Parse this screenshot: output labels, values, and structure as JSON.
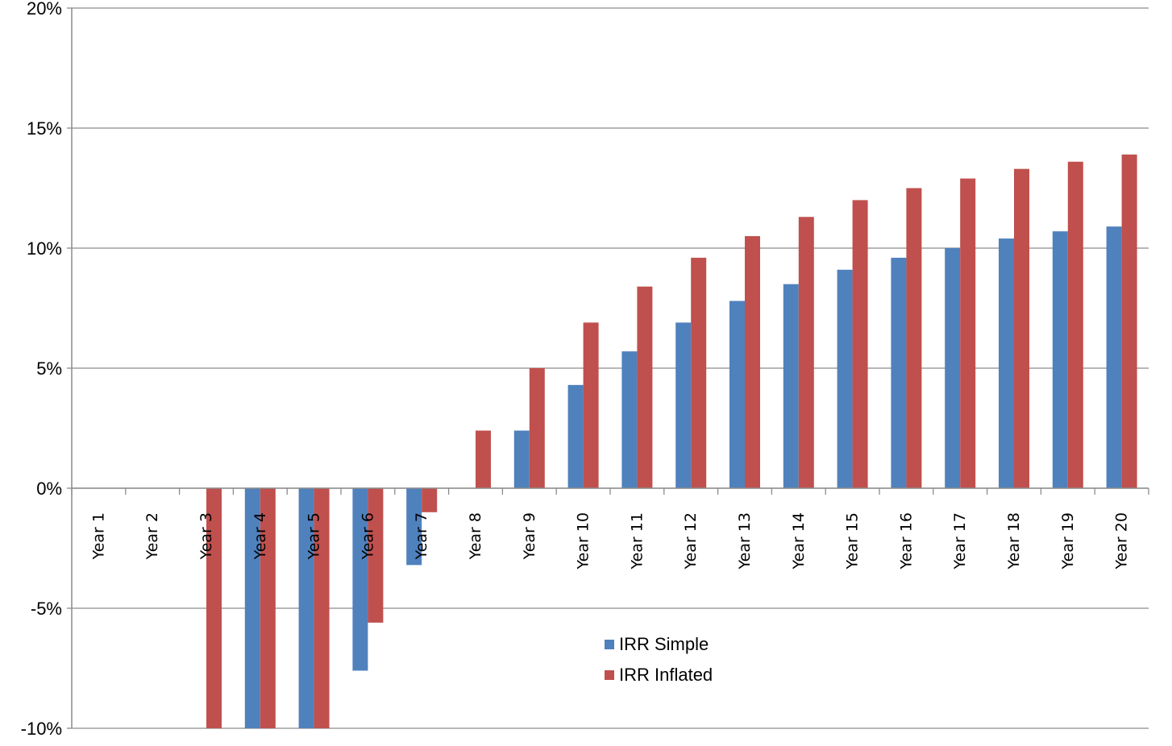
{
  "chart_data": {
    "type": "bar",
    "categories": [
      "Year 1",
      "Year 2",
      "Year 3",
      "Year 4",
      "Year 5",
      "Year 6",
      "Year 7",
      "Year 8",
      "Year 9",
      "Year 10",
      "Year 11",
      "Year 12",
      "Year 13",
      "Year 14",
      "Year 15",
      "Year 16",
      "Year 17",
      "Year 18",
      "Year 19",
      "Year 20"
    ],
    "series": [
      {
        "name": "IRR Simple",
        "color": "#4F81BD",
        "values": [
          null,
          null,
          null,
          -10,
          -10,
          -7.6,
          -3.2,
          null,
          2.4,
          4.3,
          5.7,
          6.9,
          7.8,
          8.5,
          9.1,
          9.6,
          10.0,
          10.4,
          10.7,
          10.9
        ]
      },
      {
        "name": "IRR Inflated",
        "color": "#C0504D",
        "values": [
          null,
          null,
          -10,
          -10,
          -10,
          -5.6,
          -1.0,
          2.4,
          5.0,
          6.9,
          8.4,
          9.6,
          10.5,
          11.3,
          12.0,
          12.5,
          12.9,
          13.3,
          13.6,
          13.9
        ]
      }
    ],
    "yticks": [
      "-10%",
      "-5%",
      "0%",
      "5%",
      "10%",
      "15%",
      "20%"
    ],
    "ytick_values": [
      -10,
      -5,
      0,
      5,
      10,
      15,
      20
    ],
    "ylim": [
      -10,
      20
    ],
    "grid": true,
    "legend_position": "bottom-center",
    "title": "",
    "xlabel": "",
    "ylabel": ""
  }
}
